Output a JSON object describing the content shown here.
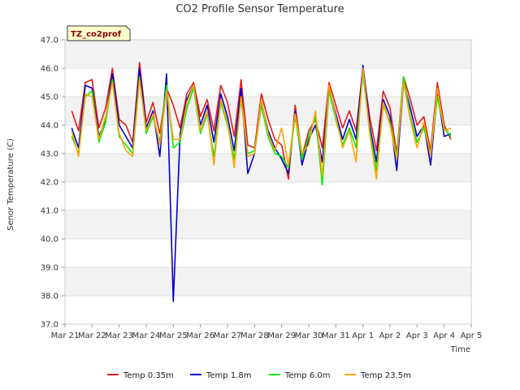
{
  "chart_data": {
    "type": "line",
    "title": "CO2 Profile Sensor Temperature",
    "xlabel": "Time",
    "ylabel": "Senor Temperature (C)",
    "badge": "TZ_co2prof",
    "xlim": [
      0,
      15
    ],
    "ylim": [
      37.0,
      47.0
    ],
    "x_ticks": [
      {
        "pos": 0,
        "label": "Mar 21"
      },
      {
        "pos": 1,
        "label": "Mar 22"
      },
      {
        "pos": 2,
        "label": "Mar 23"
      },
      {
        "pos": 3,
        "label": "Mar 24"
      },
      {
        "pos": 4,
        "label": "Mar 25"
      },
      {
        "pos": 5,
        "label": "Mar 26"
      },
      {
        "pos": 6,
        "label": "Mar 27"
      },
      {
        "pos": 7,
        "label": "Mar 28"
      },
      {
        "pos": 8,
        "label": "Mar 29"
      },
      {
        "pos": 9,
        "label": "Mar 30"
      },
      {
        "pos": 10,
        "label": "Mar 31"
      },
      {
        "pos": 11,
        "label": "Apr 1"
      },
      {
        "pos": 12,
        "label": "Apr 2"
      },
      {
        "pos": 13,
        "label": "Apr 3"
      },
      {
        "pos": 14,
        "label": "Apr 4"
      },
      {
        "pos": 15,
        "label": "Apr 5"
      }
    ],
    "y_ticks": [
      "37.0",
      "38.0",
      "39.0",
      "40.0",
      "41.0",
      "42.0",
      "43.0",
      "44.0",
      "45.0",
      "46.0",
      "47.0"
    ],
    "bands": [
      [
        46,
        47
      ],
      [
        44,
        45
      ],
      [
        42,
        43
      ],
      [
        40,
        41
      ],
      [
        38,
        39
      ]
    ],
    "x": [
      0.25,
      0.5,
      0.75,
      1.0,
      1.25,
      1.5,
      1.75,
      2.0,
      2.25,
      2.5,
      2.75,
      3.0,
      3.25,
      3.5,
      3.75,
      4.0,
      4.25,
      4.5,
      4.75,
      5.0,
      5.25,
      5.5,
      5.75,
      6.0,
      6.25,
      6.5,
      6.75,
      7.0,
      7.25,
      7.5,
      7.75,
      8.0,
      8.25,
      8.5,
      8.75,
      9.0,
      9.25,
      9.5,
      9.75,
      10.0,
      10.25,
      10.5,
      10.75,
      11.0,
      11.25,
      11.5,
      11.75,
      12.0,
      12.25,
      12.5,
      12.75,
      13.0,
      13.25,
      13.5,
      13.75,
      14.0,
      14.25
    ],
    "series": [
      {
        "name": "Temp 0.35m",
        "color": "#e31a1c",
        "values": [
          44.5,
          43.8,
          45.5,
          45.6,
          43.9,
          44.6,
          46.0,
          44.2,
          44.0,
          43.4,
          46.2,
          44.1,
          44.8,
          43.7,
          45.3,
          44.7,
          43.9,
          45.1,
          45.5,
          44.3,
          44.9,
          43.8,
          45.4,
          44.8,
          43.6,
          45.6,
          43.3,
          43.2,
          45.1,
          44.2,
          43.5,
          43.3,
          42.1,
          44.7,
          42.9,
          43.8,
          44.2,
          43.2,
          45.5,
          44.7,
          43.9,
          44.5,
          43.8,
          46.0,
          44.3,
          43.1,
          45.2,
          44.6,
          43.0,
          45.7,
          44.9,
          44.0,
          44.3,
          43.1,
          45.5,
          44.0,
          43.5
        ]
      },
      {
        "name": "Temp 1.8m",
        "color": "#0000cc",
        "values": [
          43.9,
          43.2,
          45.4,
          45.3,
          43.6,
          44.2,
          45.8,
          44.0,
          43.6,
          43.2,
          46.0,
          43.9,
          44.5,
          42.9,
          45.8,
          37.8,
          43.7,
          44.9,
          45.4,
          44.0,
          44.7,
          43.4,
          45.1,
          44.3,
          43.1,
          45.3,
          42.3,
          43.0,
          44.8,
          43.8,
          43.2,
          42.8,
          42.3,
          44.5,
          42.6,
          43.5,
          44.0,
          42.7,
          45.3,
          44.4,
          43.5,
          44.2,
          43.5,
          46.1,
          44.0,
          42.7,
          44.9,
          44.3,
          42.4,
          45.5,
          44.6,
          43.6,
          44.0,
          42.6,
          45.2,
          43.6,
          43.7
        ]
      },
      {
        "name": "Temp 6.0m",
        "color": "#00ee00",
        "values": [
          43.6,
          43.0,
          45.0,
          45.2,
          43.4,
          44.1,
          45.6,
          43.6,
          43.3,
          43.0,
          45.7,
          43.7,
          44.3,
          43.4,
          45.4,
          43.2,
          43.4,
          44.6,
          45.3,
          43.7,
          44.4,
          42.9,
          44.8,
          44.0,
          42.8,
          44.9,
          43.0,
          43.1,
          44.7,
          43.6,
          43.0,
          42.9,
          42.5,
          44.3,
          42.8,
          43.6,
          44.3,
          41.9,
          45.2,
          44.2,
          43.3,
          43.9,
          43.2,
          45.8,
          43.8,
          42.4,
          44.7,
          44.1,
          42.9,
          45.7,
          44.3,
          43.4,
          43.9,
          43.0,
          45.0,
          43.9,
          43.6
        ]
      },
      {
        "name": "Temp 23.5m",
        "color": "#ffa500",
        "values": [
          43.8,
          42.9,
          45.1,
          45.0,
          43.5,
          44.3,
          45.5,
          43.7,
          43.1,
          42.9,
          45.6,
          43.8,
          44.4,
          43.3,
          45.2,
          43.5,
          43.5,
          44.8,
          45.4,
          43.8,
          44.5,
          42.6,
          44.9,
          44.1,
          42.5,
          45.0,
          42.9,
          43.0,
          44.9,
          43.7,
          43.1,
          43.9,
          42.6,
          44.4,
          43.0,
          43.3,
          44.5,
          42.2,
          45.4,
          44.3,
          43.2,
          43.8,
          42.7,
          46.0,
          43.7,
          42.1,
          44.8,
          44.0,
          42.8,
          45.5,
          44.2,
          43.2,
          44.1,
          42.9,
          45.3,
          43.8,
          43.9
        ]
      }
    ],
    "legend": [
      "Temp 0.35m",
      "Temp 1.8m",
      "Temp 6.0m",
      "Temp 23.5m"
    ]
  }
}
